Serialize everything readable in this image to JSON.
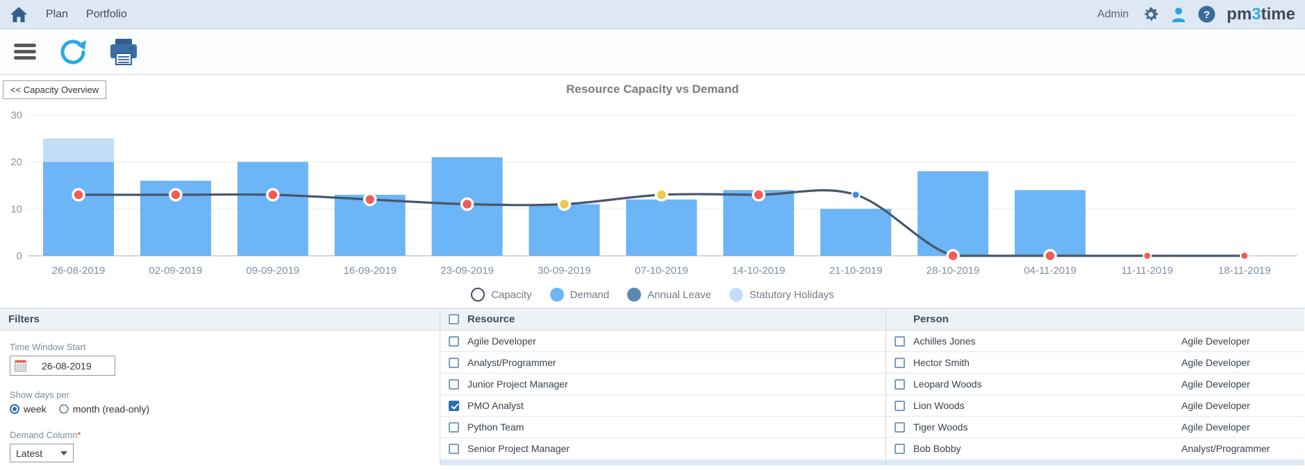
{
  "nav": {
    "items": [
      "Plan",
      "Portfolio"
    ],
    "admin_label": "Admin",
    "logo": {
      "pre": "pm",
      "digit": "3",
      "post": "time"
    }
  },
  "chart": {
    "back_button_label": "<< Capacity Overview"
  },
  "chart_data": {
    "type": "bar",
    "title": "Resource Capacity vs Demand",
    "categories": [
      "26-08-2019",
      "02-09-2019",
      "09-09-2019",
      "16-09-2019",
      "23-09-2019",
      "30-09-2019",
      "07-10-2019",
      "14-10-2019",
      "21-10-2019",
      "28-10-2019",
      "04-11-2019",
      "11-11-2019",
      "18-11-2019"
    ],
    "series": [
      {
        "name": "Demand",
        "type": "bar",
        "color": "#6cb5f6",
        "values": [
          20,
          16,
          20,
          13,
          21,
          11,
          12,
          14,
          10,
          18,
          14,
          0,
          0
        ]
      },
      {
        "name": "Statutory Holidays",
        "type": "bar-stacked",
        "color": "#c3ddf9",
        "values": [
          5,
          0,
          0,
          0,
          0,
          0,
          0,
          0,
          0,
          0,
          0,
          0,
          0
        ]
      },
      {
        "name": "Annual Leave",
        "type": "bar-stacked",
        "color": "#5d87b3",
        "values": [
          0,
          0,
          0,
          0,
          0,
          0,
          0,
          0,
          0,
          0,
          0,
          0,
          0
        ]
      },
      {
        "name": "Capacity",
        "type": "line",
        "color": "#47566b",
        "values": [
          13,
          13,
          13,
          12,
          11,
          11,
          13,
          13,
          13,
          0,
          0,
          0,
          0
        ],
        "point_colors": [
          "#f05c56",
          "#f05c56",
          "#f05c56",
          "#f05c56",
          "#f05c56",
          "#ecc94e",
          "#ecc94e",
          "#f05c56",
          "#4285f4",
          "#f05c56",
          "#f05c56",
          "#f05c56",
          "#f05c56"
        ],
        "point_sizes": [
          8,
          8,
          8,
          8,
          8,
          8,
          8,
          8,
          5.5,
          8,
          8,
          5.5,
          5.5
        ]
      }
    ],
    "ylim": [
      0,
      30
    ],
    "yticks": [
      0,
      10,
      20,
      30
    ],
    "grid": true,
    "legend_position": "bottom",
    "legend": [
      {
        "label": "Capacity",
        "hollow": true,
        "color": "#3f4e63"
      },
      {
        "label": "Demand",
        "hollow": false,
        "color": "#6cb5f6"
      },
      {
        "label": "Annual Leave",
        "hollow": false,
        "color": "#5d87b3"
      },
      {
        "label": "Statutory Holidays",
        "hollow": false,
        "color": "#c3ddf9"
      }
    ]
  },
  "filters": {
    "title": "Filters",
    "time_window_label": "Time Window Start",
    "time_window_value": "26-08-2019",
    "show_days_label": "Show days per",
    "radio_week_label": "week",
    "radio_month_label": "month (read-only)",
    "demand_column_label": "Demand Column",
    "demand_column_required": "*",
    "demand_column_value": "Latest"
  },
  "resource_table": {
    "header": "Resource",
    "header_checked": false,
    "items": [
      {
        "label": "Agile Developer",
        "checked": false
      },
      {
        "label": "Analyst/Programmer",
        "checked": false
      },
      {
        "label": "Junior Project Manager",
        "checked": false
      },
      {
        "label": "PMO Analyst",
        "checked": true
      },
      {
        "label": "Python Team",
        "checked": false
      },
      {
        "label": "Senior Project Manager",
        "checked": false
      }
    ]
  },
  "person_table": {
    "header": "Person",
    "rows": [
      {
        "name": "Achilles Jones",
        "role": "Agile Developer",
        "checked": false
      },
      {
        "name": "Hector Smith",
        "role": "Agile Developer",
        "checked": false
      },
      {
        "name": "Leopard Woods",
        "role": "Agile Developer",
        "checked": false
      },
      {
        "name": "Lion Woods",
        "role": "Agile Developer",
        "checked": false
      },
      {
        "name": "Tiger Woods",
        "role": "Agile Developer",
        "checked": false
      },
      {
        "name": "Bob Bobby",
        "role": "Analyst/Programmer",
        "checked": false
      }
    ]
  }
}
